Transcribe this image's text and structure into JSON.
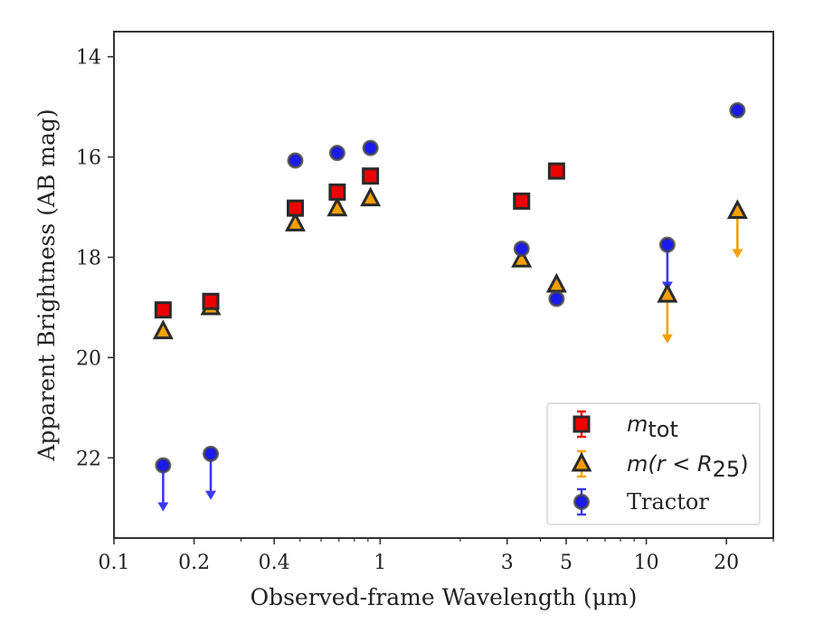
{
  "chart_data": {
    "type": "scatter",
    "xlabel": "Observed-frame Wavelength (μm)",
    "ylabel": "Apparent Brightness (AB mag)",
    "xscale": "log",
    "xlim": [
      0.1,
      30
    ],
    "ylim": [
      23.6,
      13.5
    ],
    "y_inverted": true,
    "xticks": [
      0.1,
      0.2,
      0.4,
      1,
      3,
      5,
      10,
      20
    ],
    "xtick_labels": [
      "0.1",
      "0.2",
      "0.4",
      "1",
      "3",
      "5",
      "10",
      "20"
    ],
    "yticks": [
      14,
      16,
      18,
      20,
      22
    ],
    "ytick_labels": [
      "14",
      "16",
      "18",
      "20",
      "22"
    ],
    "grid": false,
    "legend_position": "lower-right",
    "legend": [
      {
        "label_base": "m",
        "label_sub": "tot"
      },
      {
        "label_prefix": "m(r < R",
        "label_sub": "25",
        "label_suffix": ")"
      },
      {
        "label": "Tractor"
      }
    ],
    "colors": {
      "mtot": "#ee0000",
      "mr25": "#f5a000",
      "tractor": "#1a1aee",
      "edge": "#2a2a2a",
      "tractor_arrow": "#3a3aee",
      "mr25_arrow": "#f5a000"
    },
    "series": [
      {
        "key": "mtot",
        "marker": "square",
        "points": [
          {
            "x": 0.153,
            "y": 19.05
          },
          {
            "x": 0.231,
            "y": 18.88
          },
          {
            "x": 0.48,
            "y": 17.02
          },
          {
            "x": 0.69,
            "y": 16.7
          },
          {
            "x": 0.92,
            "y": 16.38
          },
          {
            "x": 3.4,
            "y": 16.88
          },
          {
            "x": 4.6,
            "y": 16.28
          }
        ]
      },
      {
        "key": "mr25",
        "marker": "triangle",
        "points": [
          {
            "x": 0.153,
            "y": 19.48
          },
          {
            "x": 0.231,
            "y": 19.0
          },
          {
            "x": 0.48,
            "y": 17.33
          },
          {
            "x": 0.69,
            "y": 17.03
          },
          {
            "x": 0.92,
            "y": 16.83
          },
          {
            "x": 3.4,
            "y": 18.05
          },
          {
            "x": 4.6,
            "y": 18.55
          },
          {
            "x": 12.0,
            "y": 18.75,
            "upper_limit": true,
            "arrow_to": 19.7
          },
          {
            "x": 22.0,
            "y": 17.08,
            "upper_limit": true,
            "arrow_to": 18.0
          }
        ]
      },
      {
        "key": "tractor",
        "marker": "circle",
        "points": [
          {
            "x": 0.153,
            "y": 22.15,
            "upper_limit": true,
            "arrow_to": 23.05
          },
          {
            "x": 0.231,
            "y": 21.92,
            "upper_limit": true,
            "arrow_to": 22.82
          },
          {
            "x": 0.48,
            "y": 16.07
          },
          {
            "x": 0.69,
            "y": 15.92
          },
          {
            "x": 0.92,
            "y": 15.82
          },
          {
            "x": 3.4,
            "y": 17.83
          },
          {
            "x": 4.6,
            "y": 18.83
          },
          {
            "x": 12.0,
            "y": 17.75,
            "upper_limit": true,
            "arrow_to": 18.65
          },
          {
            "x": 22.0,
            "y": 15.07
          }
        ]
      }
    ]
  }
}
